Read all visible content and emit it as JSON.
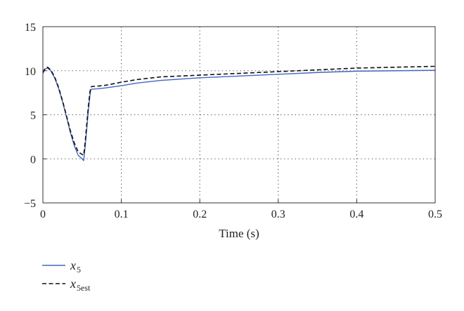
{
  "chart_data": {
    "type": "line",
    "title": "",
    "xlabel": "Time (s)",
    "ylabel": "",
    "xlim": [
      0,
      0.5
    ],
    "ylim": [
      -5,
      15
    ],
    "xticks": [
      0,
      0.1,
      0.2,
      0.3,
      0.4,
      0.5
    ],
    "xtick_labels": [
      "0",
      "0.1",
      "0.2",
      "0.3",
      "0.4",
      "0.5"
    ],
    "yticks": [
      -5,
      0,
      5,
      10,
      15
    ],
    "ytick_labels": [
      "−5",
      "0",
      "5",
      "10",
      "15"
    ],
    "grid": "dotted",
    "legend_position": "below-left",
    "series": [
      {
        "name": "x5",
        "legend_main": "x",
        "legend_sub": "5",
        "color": "#4466c4",
        "dash": "solid",
        "x": [
          0,
          0.003,
          0.006,
          0.01,
          0.015,
          0.02,
          0.025,
          0.03,
          0.035,
          0.04,
          0.045,
          0.05,
          0.052,
          0.054,
          0.056,
          0.058,
          0.06,
          0.061,
          0.062,
          0.07,
          0.08,
          0.1,
          0.12,
          0.15,
          0.2,
          0.25,
          0.3,
          0.35,
          0.4,
          0.45,
          0.5
        ],
        "y": [
          9.7,
          10.2,
          10.3,
          10.0,
          9.2,
          8.0,
          6.5,
          4.8,
          3.0,
          1.5,
          0.4,
          0.0,
          -0.2,
          1.5,
          3.5,
          5.5,
          7.2,
          7.8,
          7.9,
          7.95,
          8.05,
          8.3,
          8.6,
          8.9,
          9.2,
          9.4,
          9.6,
          9.8,
          9.95,
          10.0,
          10.05
        ]
      },
      {
        "name": "x5est",
        "legend_main": "x",
        "legend_sub": "5est",
        "color": "#111111",
        "dash": "dashed",
        "x": [
          0,
          0.003,
          0.006,
          0.01,
          0.015,
          0.02,
          0.025,
          0.03,
          0.035,
          0.04,
          0.045,
          0.05,
          0.052,
          0.054,
          0.056,
          0.058,
          0.06,
          0.061,
          0.062,
          0.07,
          0.08,
          0.1,
          0.12,
          0.15,
          0.2,
          0.25,
          0.3,
          0.35,
          0.4,
          0.45,
          0.5
        ],
        "y": [
          9.8,
          10.3,
          10.4,
          10.1,
          9.3,
          8.1,
          6.6,
          4.9,
          3.2,
          1.8,
          0.8,
          0.5,
          0.4,
          2.0,
          4.0,
          6.0,
          7.6,
          8.1,
          8.2,
          8.25,
          8.35,
          8.7,
          9.0,
          9.3,
          9.5,
          9.7,
          9.9,
          10.1,
          10.3,
          10.4,
          10.5
        ]
      }
    ]
  }
}
